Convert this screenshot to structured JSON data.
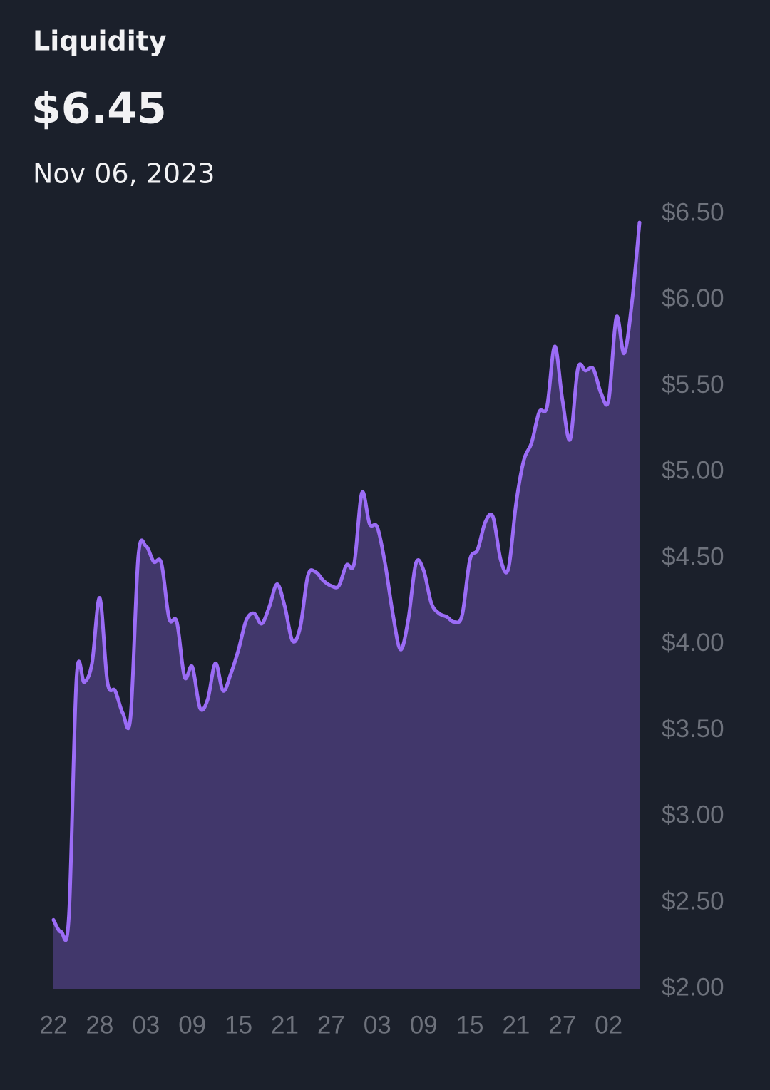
{
  "chart_data": {
    "type": "area",
    "title": "Liquidity",
    "subtitle": "$6.45",
    "date": "Nov 06, 2023",
    "categories": [
      "22",
      null,
      null,
      null,
      null,
      null,
      "28",
      null,
      null,
      null,
      null,
      null,
      "03",
      null,
      null,
      null,
      null,
      null,
      "09",
      null,
      null,
      null,
      null,
      null,
      "15",
      null,
      null,
      null,
      null,
      null,
      "21",
      null,
      null,
      null,
      null,
      null,
      "27",
      null,
      null,
      null,
      null,
      null,
      "03",
      null,
      null,
      null,
      null,
      null,
      "09",
      null,
      null,
      null,
      null,
      null,
      "15",
      null,
      null,
      null,
      null,
      null,
      "21",
      null,
      null,
      null,
      null,
      null,
      "27",
      null,
      null,
      null,
      null,
      null,
      "02",
      null,
      null,
      null,
      null
    ],
    "series": [
      {
        "name": "Liquidity",
        "color": "#9b6cf6",
        "fill": "#41376b",
        "values": [
          2.4,
          2.33,
          2.42,
          3.81,
          3.78,
          3.89,
          4.27,
          3.78,
          3.73,
          3.6,
          3.58,
          4.51,
          4.57,
          4.48,
          4.47,
          4.15,
          4.13,
          3.81,
          3.87,
          3.63,
          3.68,
          3.89,
          3.73,
          3.83,
          3.97,
          4.14,
          4.18,
          4.12,
          4.22,
          4.35,
          4.22,
          4.02,
          4.1,
          4.4,
          4.42,
          4.37,
          4.34,
          4.34,
          4.46,
          4.47,
          4.88,
          4.7,
          4.68,
          4.47,
          4.18,
          3.97,
          4.14,
          4.47,
          4.43,
          4.24,
          4.18,
          4.16,
          4.13,
          4.17,
          4.49,
          4.55,
          4.71,
          4.74,
          4.49,
          4.44,
          4.82,
          5.07,
          5.17,
          5.35,
          5.38,
          5.73,
          5.42,
          5.19,
          5.6,
          5.59,
          5.6,
          5.46,
          5.42,
          5.9,
          5.69,
          5.98,
          6.45
        ]
      }
    ],
    "ylim": [
      2,
      6.5
    ],
    "yticks": [
      {
        "value": 2,
        "label": "$2.00"
      },
      {
        "value": 2.5,
        "label": "$2.50"
      },
      {
        "value": 3,
        "label": "$3.00"
      },
      {
        "value": 3.5,
        "label": "$3.50"
      },
      {
        "value": 4,
        "label": "$4.00"
      },
      {
        "value": 4.5,
        "label": "$4.50"
      },
      {
        "value": 5,
        "label": "$5.00"
      },
      {
        "value": 5.5,
        "label": "$5.50"
      },
      {
        "value": 6,
        "label": "$6.00"
      },
      {
        "value": 6.5,
        "label": "$6.50"
      }
    ],
    "grid": false
  }
}
